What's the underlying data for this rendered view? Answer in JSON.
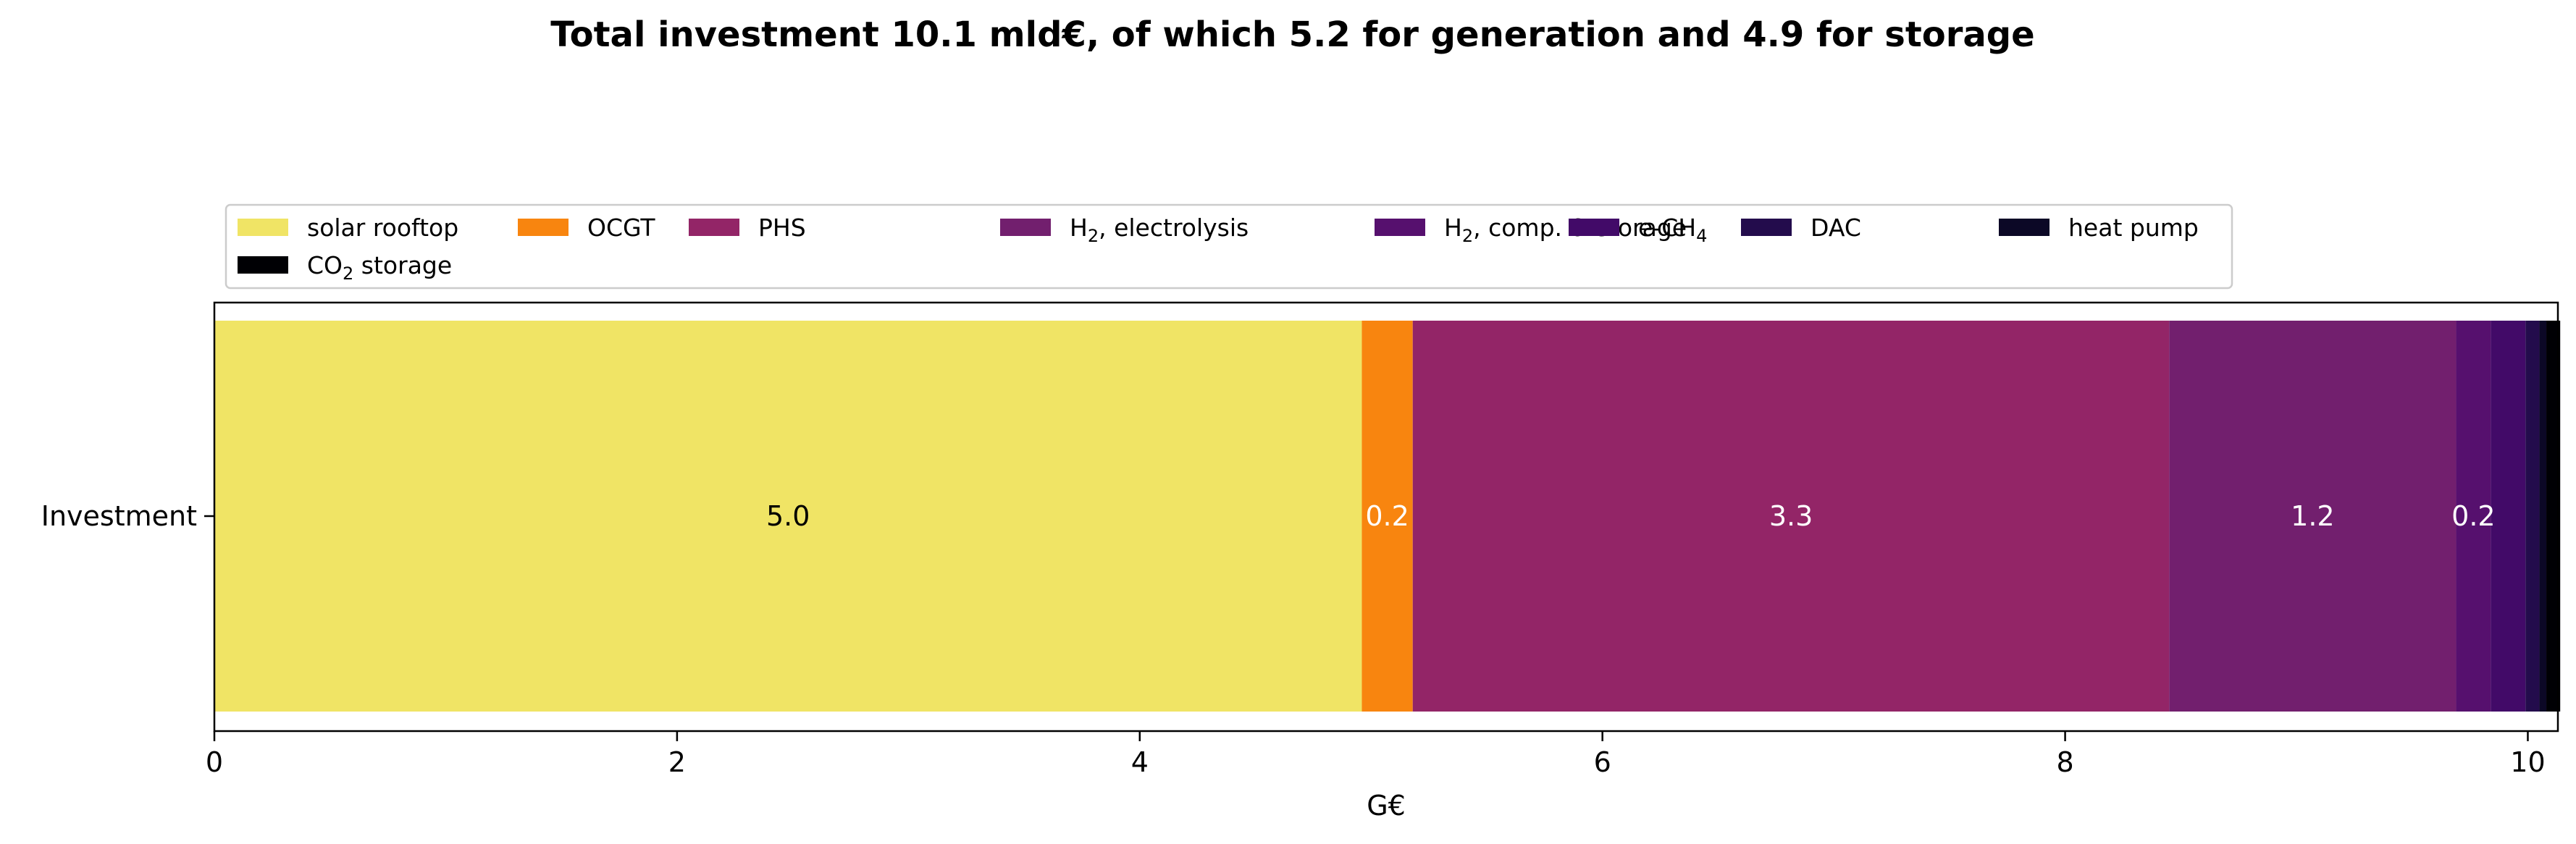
{
  "chart_data": {
    "type": "bar",
    "orientation": "horizontal-stacked",
    "title": "Total investment 10.1 mld€, of which 5.2 for generation and 4.9 for storage",
    "xlabel": "G€",
    "ylabel": "",
    "categories": [
      "Investment"
    ],
    "xlim": [
      0,
      10.13
    ],
    "xticks": [
      "0",
      "2",
      "4",
      "6",
      "8",
      "10"
    ],
    "grid": false,
    "legend_placement": "top-left, above plot",
    "series": [
      {
        "name": "solar rooftop",
        "legend_main": "solar rooftop",
        "legend_sub": "",
        "legend_tail": "",
        "values": [
          4.96
        ],
        "color": "#f0e465",
        "label": "5.0",
        "label_color": "#000000"
      },
      {
        "name": "OCGT",
        "legend_main": "OCGT",
        "legend_sub": "",
        "legend_tail": "",
        "values": [
          0.22
        ],
        "color": "#f8850f",
        "label": "0.2",
        "label_color": "#ffffff"
      },
      {
        "name": "PHS",
        "legend_main": "PHS",
        "legend_sub": "",
        "legend_tail": "",
        "values": [
          3.27
        ],
        "color": "#932567",
        "label": "3.3",
        "label_color": "#ffffff"
      },
      {
        "name": "H2, electrolysis",
        "legend_main": "H",
        "legend_sub": "2",
        "legend_tail": ", electrolysis",
        "values": [
          1.24
        ],
        "color": "#721f6e",
        "label": "1.2",
        "label_color": "#ffffff"
      },
      {
        "name": "H2, comp. & storage",
        "legend_main": "H",
        "legend_sub": "2",
        "legend_tail": ", comp. & storage",
        "values": [
          0.15
        ],
        "color": "#56106e",
        "label": "0.2",
        "label_color": "#ffffff"
      },
      {
        "name": "e-CH4",
        "legend_main": "e-CH",
        "legend_sub": "4",
        "legend_tail": "",
        "values": [
          0.15
        ],
        "color": "#420a68",
        "label": "",
        "label_color": "#ffffff"
      },
      {
        "name": "DAC",
        "legend_main": "DAC",
        "legend_sub": "",
        "legend_tail": "",
        "values": [
          0.06
        ],
        "color": "#230c4c",
        "label": "",
        "label_color": "#ffffff"
      },
      {
        "name": "heat pump",
        "legend_main": "heat pump",
        "legend_sub": "",
        "legend_tail": "",
        "values": [
          0.03
        ],
        "color": "#0c0826",
        "label": "",
        "label_color": "#ffffff"
      },
      {
        "name": "CO2 storage",
        "legend_main": "CO",
        "legend_sub": "2",
        "legend_tail": " storage",
        "values": [
          0.06
        ],
        "color": "#000004",
        "label": "",
        "label_color": "#ffffff"
      }
    ]
  }
}
